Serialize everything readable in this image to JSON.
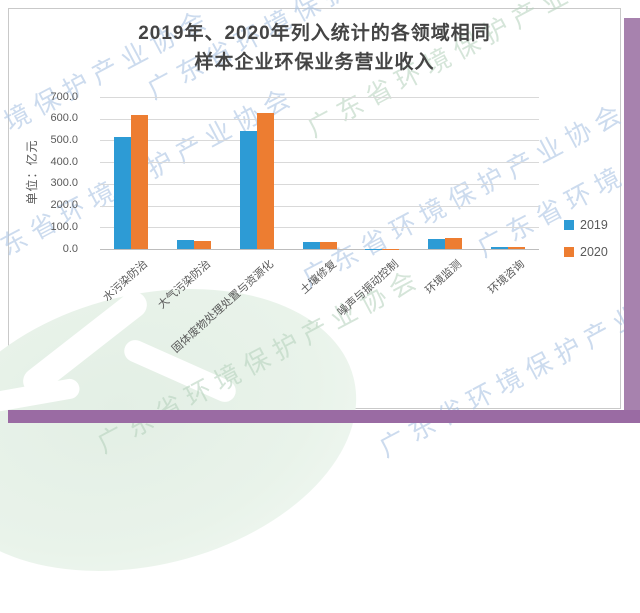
{
  "watermark": {
    "text": "广东省环境保护产业协会"
  },
  "title": {
    "line1": "2019年、2020年列入统计的各领域相同",
    "line2": "样本企业环保业务营业收入"
  },
  "chart_data": {
    "type": "bar",
    "title": "2019年、2020年列入统计的各领域相同样本企业环保业务营业收入",
    "ylabel": "单位：亿元",
    "ylim": [
      0,
      700
    ],
    "ytick_step": 100,
    "ytick_decimals": 1,
    "grid": true,
    "legend_position": "right",
    "categories": [
      "水污染防治",
      "大气污染防治",
      "固体废物处理处置与资源化",
      "土壤修复",
      "噪声与振动控制",
      "环境监测",
      "环境咨询"
    ],
    "series": [
      {
        "name": "2019",
        "color": "#2D9BD5",
        "values": [
          515,
          42,
          542,
          34,
          2,
          45,
          9
        ]
      },
      {
        "name": "2020",
        "color": "#ED7D31",
        "values": [
          618,
          38,
          628,
          34,
          2,
          52,
          11
        ]
      }
    ]
  },
  "accents": {
    "side_bar_color": "#a782ae",
    "bottom_bar_color": "#9a6ba3"
  }
}
